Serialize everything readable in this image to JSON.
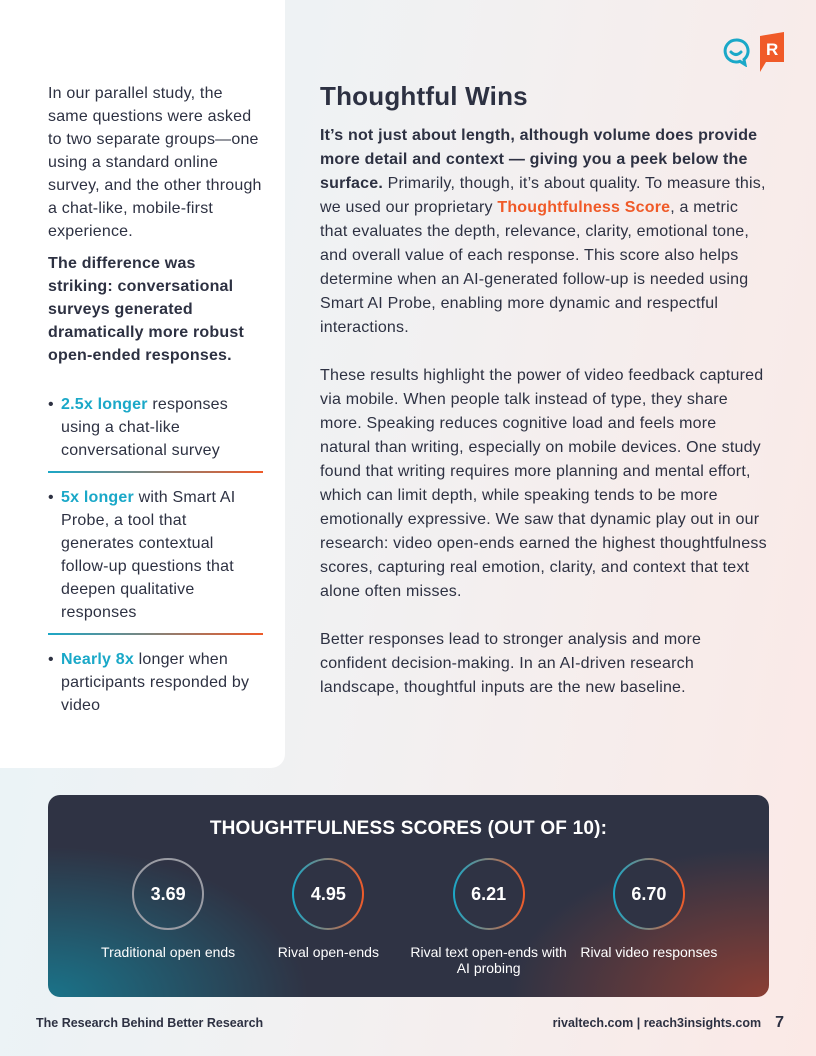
{
  "left": {
    "intro": "In our parallel study, the same questions were asked to two separate groups—one using a standard online survey, and the other through a chat-like, mobile-first experience.",
    "emphasis": "The difference was striking: conversational surveys generated dramatically more robust open-ended responses.",
    "bullets": [
      {
        "highlight": "2.5x longer",
        "text": " responses using a chat-like conversational survey"
      },
      {
        "highlight": "5x longer",
        "text": " with Smart AI Probe, a tool that generates contextual follow-up questions that deepen qualitative responses"
      },
      {
        "highlight": "Nearly 8x",
        "text": " longer when participants responded by video"
      }
    ]
  },
  "main": {
    "title": "Thoughtful Wins",
    "p1_bold": "It’s not just about length, although volume does provide more detail and context — giving you a peek below the surface.",
    "p1_a": " Primarily, though, it’s about quality. To measure this, we used our proprietary ",
    "p1_highlight": "Thoughtfulness Score",
    "p1_b": ", a metric that evaluates the depth, relevance, clarity, emotional tone, and overall value of each response. This score also helps determine when an AI-generated follow-up is needed using Smart AI Probe, enabling more dynamic and respectful interactions.",
    "p2": "These results highlight the power of video feedback captured via mobile. When people talk instead of type, they share more. Speaking reduces cognitive load and feels more natural than writing, especially on mobile devices. One study found that writing requires more planning and mental effort, which can limit depth, while speaking tends to be more emotionally expressive. We saw that dynamic play out in our research: video open-ends earned the highest thoughtfulness scores, capturing real emotion, clarity, and context that text alone often misses.",
    "p3": "Better responses lead to stronger analysis and more confident decision-making. In an AI-driven research landscape, thoughtful inputs are the new baseline."
  },
  "scores": {
    "title": "THOUGHTFULNESS SCORES (OUT OF 10):",
    "items": [
      {
        "value": "3.69",
        "label": "Traditional open ends"
      },
      {
        "value": "4.95",
        "label": "Rival open-ends"
      },
      {
        "value": "6.21",
        "label": "Rival text open-ends with AI probing"
      },
      {
        "value": "6.70",
        "label": "Rival video responses"
      }
    ]
  },
  "footer": {
    "left": "The Research Behind Better Research",
    "right": "rivaltech.com | reach3insights.com",
    "page": "7"
  },
  "logos": {
    "r_letter": "R"
  },
  "colors": {
    "accent_cyan": "#1aa8c8",
    "accent_orange": "#f05a28",
    "card": "#2f3344"
  }
}
